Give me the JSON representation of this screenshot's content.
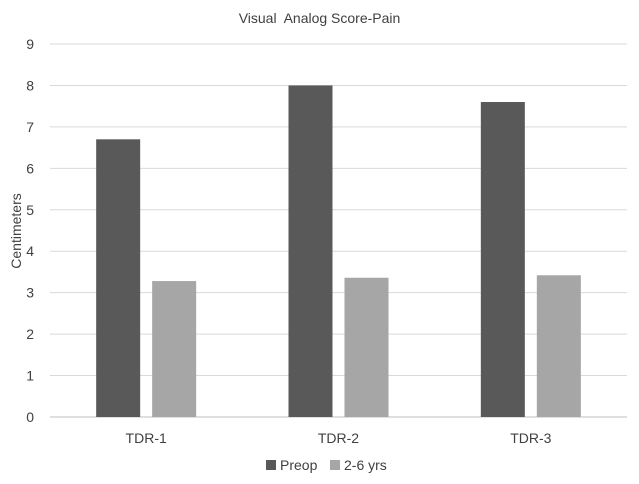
{
  "chart_data": {
    "type": "bar",
    "title": "Visual  Analog Score-Pain",
    "xlabel": "",
    "ylabel": "Centimeters",
    "categories": [
      "TDR-1",
      "TDR-2",
      "TDR-3"
    ],
    "series": [
      {
        "name": "Preop",
        "values": [
          6.7,
          8.0,
          7.6
        ],
        "color": "#595959"
      },
      {
        "name": "2-6 yrs",
        "values": [
          3.28,
          3.36,
          3.42
        ],
        "color": "#a6a6a6"
      }
    ],
    "ylim": [
      0,
      9
    ],
    "yticks": [
      0,
      1,
      2,
      3,
      4,
      5,
      6,
      7,
      8,
      9
    ],
    "grid": true,
    "legend_position": "bottom"
  }
}
